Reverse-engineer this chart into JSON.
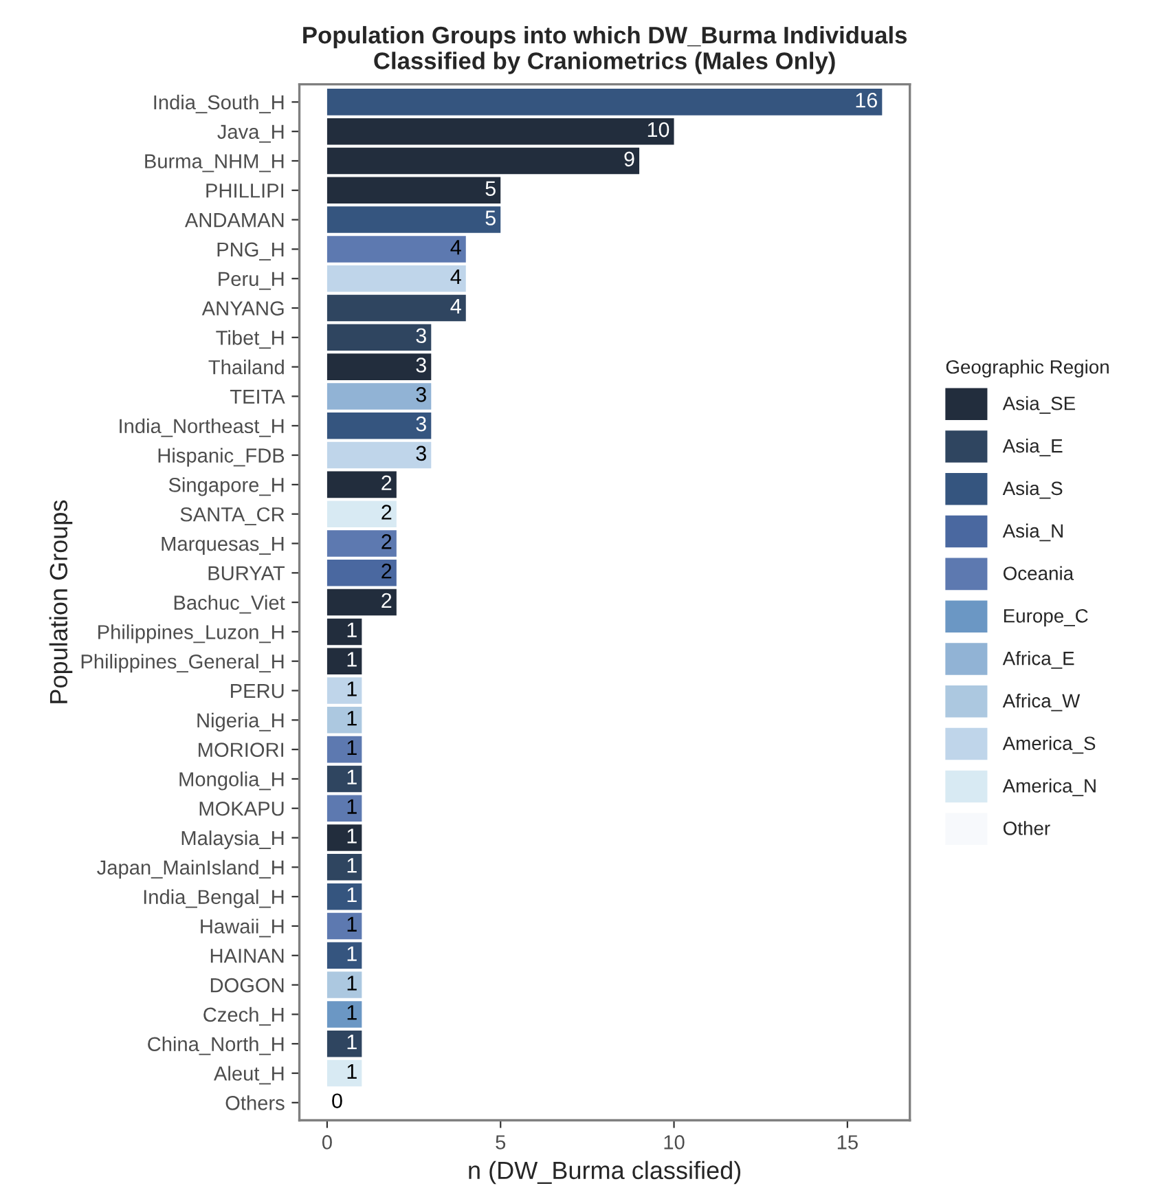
{
  "chart_data": {
    "type": "bar",
    "orientation": "horizontal",
    "stacked": true,
    "title": "Population Groups into which DW_Burma Individuals\nClassified by Craniometrics (Males Only)",
    "xlabel": "n (DW_Burma classified)",
    "ylabel": "Population Groups",
    "legend_title": "Geographic Region",
    "categories": [
      "India_South_H",
      "Java_H",
      "Burma_NHM_H",
      "PHILLIPI",
      "ANDAMAN",
      "PNG_H",
      "Peru_H",
      "ANYANG",
      "Tibet_H",
      "Thailand",
      "TEITA",
      "India_Northeast_H",
      "Hispanic_FDB",
      "Singapore_H",
      "SANTA_CR",
      "Marquesas_H",
      "BURYAT",
      "Bachuc_Viet",
      "Philippines_Luzon_H",
      "Philippines_General_H",
      "PERU",
      "Nigeria_H",
      "MORIORI",
      "Mongolia_H",
      "MOKAPU",
      "Malaysia_H",
      "Japan_MainIsland_H",
      "India_Bengal_H",
      "Hawaii_H",
      "HAINAN",
      "DOGON",
      "Czech_H",
      "China_North_H",
      "Aleut_H",
      "Others"
    ],
    "series": [
      {
        "name": "Asia_SE",
        "color": "#222d3d",
        "values": [
          null,
          10,
          9,
          5,
          null,
          null,
          null,
          null,
          null,
          3,
          null,
          null,
          null,
          2,
          null,
          null,
          null,
          2,
          1,
          1,
          null,
          null,
          null,
          null,
          null,
          1,
          null,
          null,
          null,
          null,
          null,
          null,
          null,
          null,
          null
        ]
      },
      {
        "name": "Asia_E",
        "color": "#2f4560",
        "values": [
          null,
          null,
          null,
          null,
          null,
          null,
          null,
          4,
          3,
          null,
          null,
          null,
          null,
          null,
          null,
          null,
          null,
          null,
          null,
          null,
          null,
          null,
          null,
          1,
          null,
          null,
          1,
          null,
          null,
          null,
          null,
          null,
          1,
          null,
          null
        ]
      },
      {
        "name": "Asia_S",
        "color": "#35557f",
        "values": [
          16,
          null,
          null,
          null,
          5,
          null,
          null,
          null,
          null,
          null,
          null,
          3,
          null,
          null,
          null,
          null,
          null,
          null,
          null,
          null,
          null,
          null,
          null,
          null,
          null,
          null,
          null,
          1,
          null,
          1,
          null,
          null,
          null,
          null,
          null
        ]
      },
      {
        "name": "Asia_N",
        "color": "#4a68a0",
        "values": [
          null,
          null,
          null,
          null,
          null,
          null,
          null,
          null,
          null,
          null,
          null,
          null,
          null,
          null,
          null,
          null,
          2,
          null,
          null,
          null,
          null,
          null,
          null,
          null,
          null,
          null,
          null,
          null,
          null,
          null,
          null,
          null,
          null,
          null,
          null
        ]
      },
      {
        "name": "Oceania",
        "color": "#5d79b0",
        "values": [
          null,
          null,
          null,
          null,
          null,
          4,
          null,
          null,
          null,
          null,
          null,
          null,
          null,
          null,
          null,
          2,
          null,
          null,
          null,
          null,
          null,
          null,
          1,
          null,
          1,
          null,
          null,
          null,
          1,
          null,
          null,
          null,
          null,
          null,
          null
        ]
      },
      {
        "name": "Europe_C",
        "color": "#6b97c4",
        "values": [
          null,
          null,
          null,
          null,
          null,
          null,
          null,
          null,
          null,
          null,
          null,
          null,
          null,
          null,
          null,
          null,
          null,
          null,
          null,
          null,
          null,
          null,
          null,
          null,
          null,
          null,
          null,
          null,
          null,
          null,
          null,
          1,
          null,
          null,
          null
        ]
      },
      {
        "name": "Africa_E",
        "color": "#91b3d5",
        "values": [
          null,
          null,
          null,
          null,
          null,
          null,
          null,
          null,
          null,
          null,
          3,
          null,
          null,
          null,
          null,
          null,
          null,
          null,
          null,
          null,
          null,
          null,
          null,
          null,
          null,
          null,
          null,
          null,
          null,
          null,
          null,
          null,
          null,
          null,
          null
        ]
      },
      {
        "name": "Africa_W",
        "color": "#acc8e0",
        "values": [
          null,
          null,
          null,
          null,
          null,
          null,
          null,
          null,
          null,
          null,
          null,
          null,
          null,
          null,
          null,
          null,
          null,
          null,
          null,
          null,
          null,
          1,
          null,
          null,
          null,
          null,
          null,
          null,
          null,
          null,
          1,
          null,
          null,
          null,
          null
        ]
      },
      {
        "name": "America_S",
        "color": "#bfd5ea",
        "values": [
          null,
          null,
          null,
          null,
          null,
          null,
          4,
          null,
          null,
          null,
          null,
          null,
          3,
          null,
          null,
          null,
          null,
          null,
          null,
          null,
          1,
          null,
          null,
          null,
          null,
          null,
          null,
          null,
          null,
          null,
          null,
          null,
          null,
          null,
          null
        ]
      },
      {
        "name": "America_N",
        "color": "#d8eaf3",
        "values": [
          null,
          null,
          null,
          null,
          null,
          null,
          null,
          null,
          null,
          null,
          null,
          null,
          null,
          null,
          2,
          null,
          null,
          null,
          null,
          null,
          null,
          null,
          null,
          null,
          null,
          null,
          null,
          null,
          null,
          null,
          null,
          null,
          null,
          1,
          null
        ]
      },
      {
        "name": "Other",
        "color": "#f7f9fc",
        "values": [
          null,
          null,
          null,
          null,
          null,
          null,
          null,
          null,
          null,
          null,
          null,
          null,
          null,
          null,
          null,
          null,
          null,
          null,
          null,
          null,
          null,
          null,
          null,
          null,
          null,
          null,
          null,
          null,
          null,
          null,
          null,
          null,
          null,
          null,
          0
        ]
      }
    ],
    "xlim": [
      -0.8,
      16.8
    ],
    "xticks": [
      0,
      5,
      10,
      15
    ],
    "data_labels": true,
    "grid": false,
    "legend": "right"
  }
}
